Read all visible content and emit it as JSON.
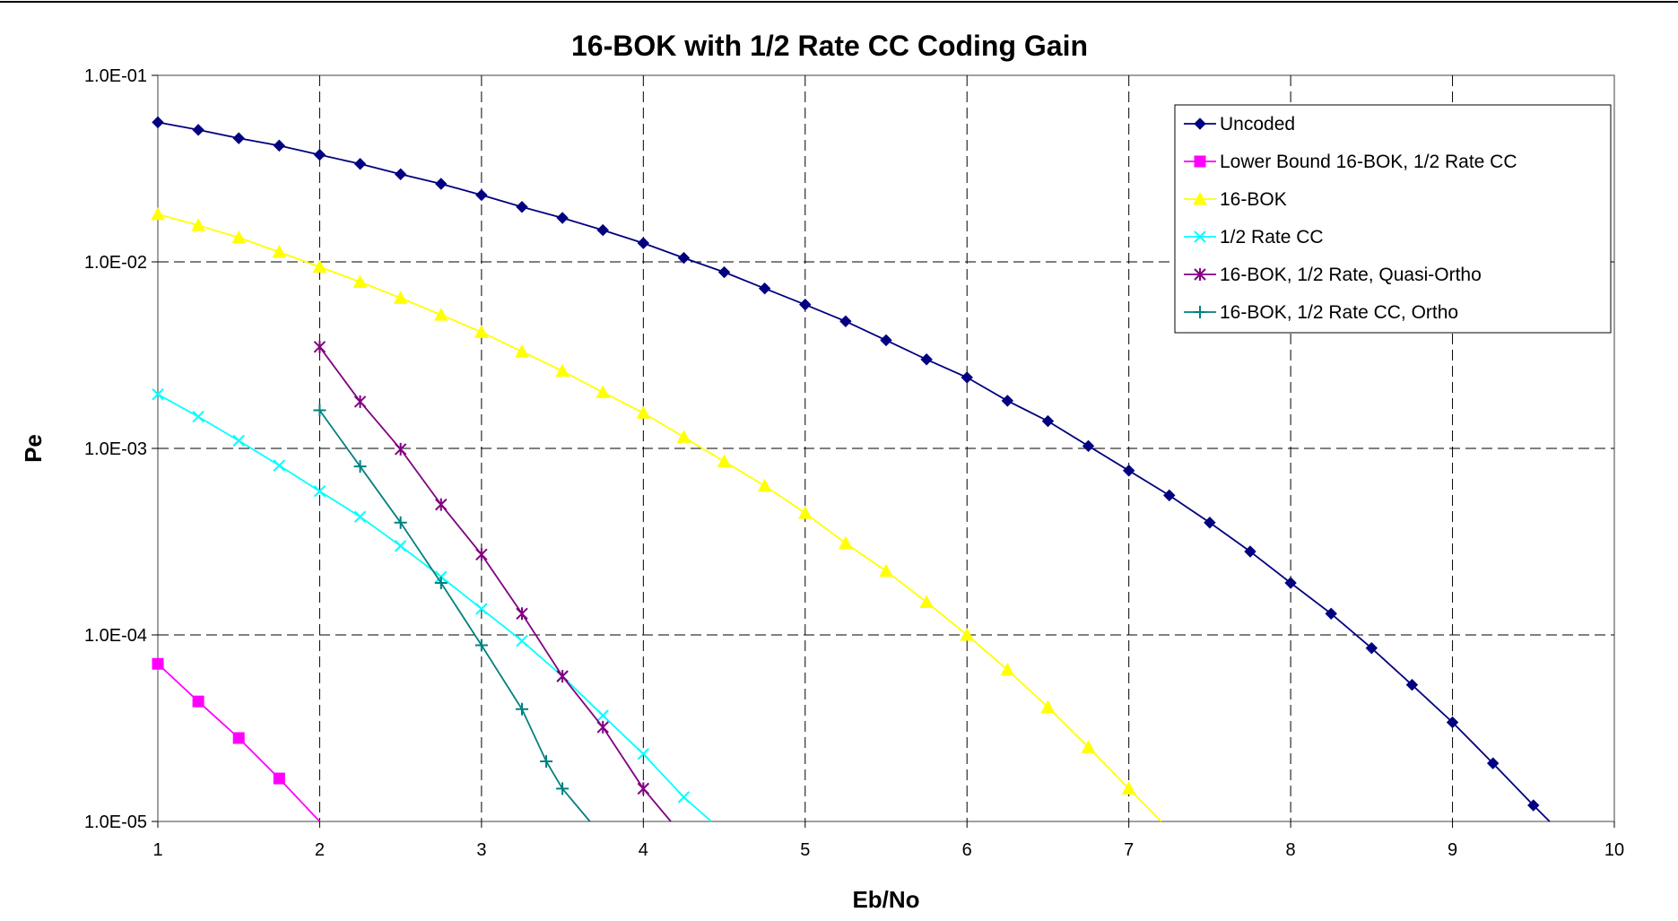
{
  "chart_data": {
    "type": "line",
    "title": "16-BOK with 1/2 Rate CC Coding Gain",
    "xlabel": "Eb/No",
    "ylabel": "Pe",
    "xlim": [
      1,
      10
    ],
    "ylim": [
      1e-05,
      0.1
    ],
    "y_scale": "log",
    "x_ticks": [
      "1",
      "2",
      "3",
      "4",
      "5",
      "6",
      "7",
      "8",
      "9",
      "10"
    ],
    "y_ticks": [
      "1.0E-01",
      "1.0E-02",
      "1.0E-03",
      "1.0E-04",
      "1.0E-05"
    ],
    "grid": "dashed",
    "legend_position": "top-right",
    "series": [
      {
        "name": "Uncoded",
        "color": "#000080",
        "marker": "diamond",
        "x": [
          1,
          1.25,
          1.5,
          1.75,
          2,
          2.25,
          2.5,
          2.75,
          3,
          3.25,
          3.5,
          3.75,
          4,
          4.25,
          4.5,
          4.75,
          5,
          5.25,
          5.5,
          5.75,
          6,
          6.25,
          6.5,
          6.75,
          7,
          7.25,
          7.5,
          7.75,
          8,
          8.25,
          8.5,
          8.75,
          9,
          9.25,
          9.5,
          9.6
        ],
        "y": [
          0.056,
          0.051,
          0.046,
          0.042,
          0.0375,
          0.0335,
          0.0295,
          0.0262,
          0.0228,
          0.0197,
          0.0172,
          0.0148,
          0.0126,
          0.0105,
          0.0088,
          0.0072,
          0.0059,
          0.0048,
          0.0038,
          0.003,
          0.0024,
          0.0018,
          0.0014,
          0.00103,
          0.00076,
          0.00056,
          0.0004,
          0.00028,
          0.00019,
          0.00013,
          8.5e-05,
          5.4e-05,
          3.4e-05,
          2.05e-05,
          1.22e-05,
          1e-05
        ],
        "markers_count": 35
      },
      {
        "name": "Lower Bound 16-BOK, 1/2 Rate CC",
        "color": "#FF00FF",
        "marker": "square",
        "x": [
          1,
          1.25,
          1.5,
          1.75,
          2
        ],
        "y": [
          7e-05,
          4.4e-05,
          2.8e-05,
          1.7e-05,
          1e-05
        ],
        "markers_count": 4
      },
      {
        "name": "16-BOK",
        "color": "#FFFF00",
        "marker": "triangle",
        "x": [
          1,
          1.25,
          1.5,
          1.75,
          2,
          2.25,
          2.5,
          2.75,
          3,
          3.25,
          3.5,
          3.75,
          4,
          4.25,
          4.5,
          4.75,
          5,
          5.25,
          5.5,
          5.75,
          6,
          6.25,
          6.5,
          6.75,
          7,
          7.2
        ],
        "y": [
          0.018,
          0.0157,
          0.0135,
          0.0113,
          0.0094,
          0.0078,
          0.0064,
          0.0052,
          0.0042,
          0.0033,
          0.0026,
          0.002,
          0.00155,
          0.00115,
          0.00085,
          0.00063,
          0.00045,
          0.00031,
          0.00022,
          0.00015,
          0.0001,
          6.5e-05,
          4.1e-05,
          2.5e-05,
          1.5e-05,
          1e-05
        ],
        "markers_count": 25
      },
      {
        "name": "1/2 Rate CC",
        "color": "#00FFFF",
        "marker": "x",
        "x": [
          1,
          1.25,
          1.5,
          1.75,
          2,
          2.25,
          2.5,
          2.75,
          3,
          3.25,
          3.5,
          3.75,
          4,
          4.25,
          4.42
        ],
        "y": [
          0.00195,
          0.00148,
          0.0011,
          0.00081,
          0.00059,
          0.00043,
          0.0003,
          0.000205,
          0.000138,
          9.3e-05,
          6e-05,
          3.7e-05,
          2.3e-05,
          1.35e-05,
          1e-05
        ],
        "markers_count": 14
      },
      {
        "name": "16-BOK, 1/2 Rate, Quasi-Ortho",
        "color": "#800080",
        "marker": "star",
        "x": [
          2,
          2.25,
          2.5,
          2.75,
          3,
          3.25,
          3.5,
          3.75,
          4,
          4.17
        ],
        "y": [
          0.0035,
          0.00178,
          0.00099,
          0.0005,
          0.00027,
          0.00013,
          6e-05,
          3.2e-05,
          1.5e-05,
          1e-05
        ],
        "markers_count": 9
      },
      {
        "name": "16-BOK, 1/2 Rate CC, Ortho",
        "color": "#008080",
        "marker": "plus",
        "x": [
          2,
          2.25,
          2.5,
          2.75,
          3,
          3.25,
          3.4,
          3.5,
          3.67
        ],
        "y": [
          0.0016,
          0.0008,
          0.0004,
          0.00019,
          8.8e-05,
          4e-05,
          2.1e-05,
          1.5e-05,
          1e-05
        ],
        "markers_count": 8
      }
    ]
  }
}
